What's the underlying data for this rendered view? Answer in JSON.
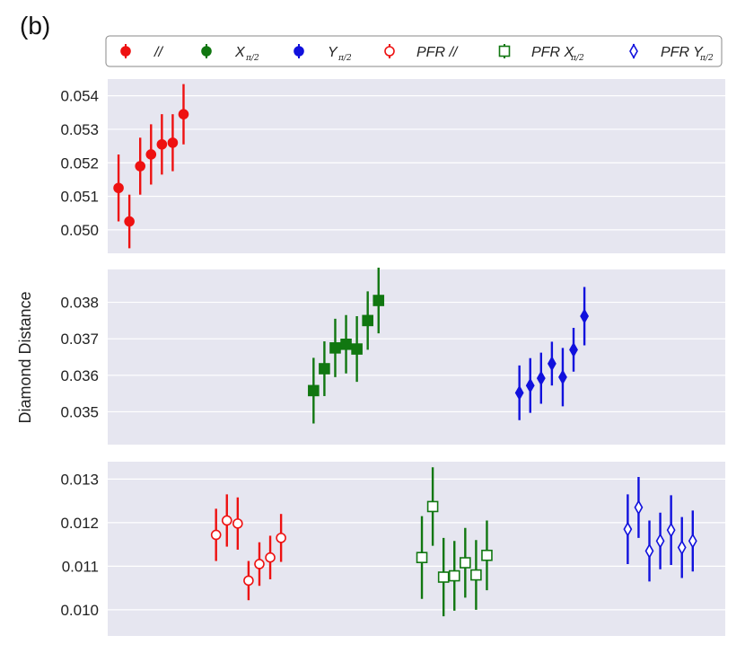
{
  "figure": {
    "panel_tag": "(b)",
    "ylabel": "Diamond Distance",
    "colors": {
      "red": "#ee1111",
      "green": "#117711",
      "blue": "#1111dd",
      "panel_bg": "#e6e6f0",
      "grid": "#ffffff"
    }
  },
  "legend": {
    "placement": "top",
    "entries": [
      {
        "id": "par",
        "label": "//",
        "marker": "circle-filled",
        "color": "#ee1111"
      },
      {
        "id": "x",
        "label": "X",
        "sub": "π/2",
        "marker": "circle-filled",
        "color": "#117711"
      },
      {
        "id": "y",
        "label": "Y",
        "sub": "π/2",
        "marker": "circle-filled",
        "color": "#1111dd"
      },
      {
        "id": "pfr_par",
        "label": "PFR //",
        "marker": "circle-open",
        "color": "#ee1111"
      },
      {
        "id": "pfr_x",
        "label": "PFR X",
        "sub": "π/2",
        "marker": "square-open",
        "color": "#117711"
      },
      {
        "id": "pfr_y",
        "label": "PFR Y",
        "sub": "π/2",
        "marker": "diamond-open",
        "color": "#1111dd"
      }
    ]
  },
  "chart_data": [
    {
      "type": "scatter",
      "title": "",
      "ylim": [
        0.0493,
        0.0545
      ],
      "yticks": [
        "0.050",
        "0.051",
        "0.052",
        "0.053",
        "0.054"
      ],
      "grid": true,
      "series": [
        {
          "name": "//",
          "marker": "circle-filled",
          "color": "#ee1111",
          "x": [
            0,
            1,
            2,
            3,
            4,
            5,
            6
          ],
          "y": [
            0.05125,
            0.05025,
            0.0519,
            0.05225,
            0.05255,
            0.0526,
            0.05345
          ],
          "err": [
            0.001,
            0.0008,
            0.00085,
            0.0009,
            0.0009,
            0.00085,
            0.0009
          ]
        }
      ]
    },
    {
      "type": "scatter",
      "title": "",
      "ylim": [
        0.0341,
        0.0389
      ],
      "yticks": [
        "0.035",
        "0.036",
        "0.037",
        "0.038"
      ],
      "grid": true,
      "series": [
        {
          "name": "X π/2",
          "marker": "square-filled",
          "color": "#117711",
          "x": [
            18,
            19,
            20,
            21,
            22,
            23,
            24
          ],
          "y": [
            0.03558,
            0.03618,
            0.03675,
            0.03685,
            0.03672,
            0.0375,
            0.03805
          ],
          "err": [
            0.0009,
            0.00075,
            0.0008,
            0.0008,
            0.0009,
            0.0008,
            0.0009
          ]
        },
        {
          "name": "Y π/2",
          "marker": "diamond-filled",
          "color": "#1111dd",
          "x": [
            37,
            38,
            39,
            40,
            41,
            42,
            43
          ],
          "y": [
            0.03552,
            0.03572,
            0.03592,
            0.03632,
            0.03595,
            0.0367,
            0.03762
          ],
          "err": [
            0.00075,
            0.00075,
            0.0007,
            0.0006,
            0.0008,
            0.0006,
            0.0008
          ]
        }
      ]
    },
    {
      "type": "scatter",
      "title": "",
      "ylim": [
        0.0094,
        0.0134
      ],
      "yticks": [
        "0.010",
        "0.011",
        "0.012",
        "0.013"
      ],
      "grid": true,
      "series": [
        {
          "name": "PFR //",
          "marker": "circle-open",
          "color": "#ee1111",
          "x": [
            9,
            10,
            11,
            12,
            13,
            14,
            15
          ],
          "y": [
            0.01172,
            0.01205,
            0.01198,
            0.01067,
            0.01105,
            0.0112,
            0.01165
          ],
          "err": [
            0.0006,
            0.0006,
            0.0006,
            0.00045,
            0.0005,
            0.0005,
            0.00055
          ]
        },
        {
          "name": "PFR X π/2",
          "marker": "square-open",
          "color": "#117711",
          "x": [
            28,
            29,
            30,
            31,
            32,
            33,
            34
          ],
          "y": [
            0.0112,
            0.01237,
            0.01075,
            0.01078,
            0.01108,
            0.0108,
            0.01125
          ],
          "err": [
            0.00095,
            0.0009,
            0.0009,
            0.0008,
            0.0008,
            0.0008,
            0.0008
          ]
        },
        {
          "name": "PFR Y π/2",
          "marker": "diamond-open",
          "color": "#1111dd",
          "x": [
            47,
            48,
            49,
            50,
            51,
            52,
            53
          ],
          "y": [
            0.01185,
            0.01235,
            0.01135,
            0.01158,
            0.01183,
            0.01143,
            0.01158
          ],
          "err": [
            0.0008,
            0.0007,
            0.0007,
            0.00065,
            0.0008,
            0.0007,
            0.0007
          ]
        }
      ]
    }
  ]
}
